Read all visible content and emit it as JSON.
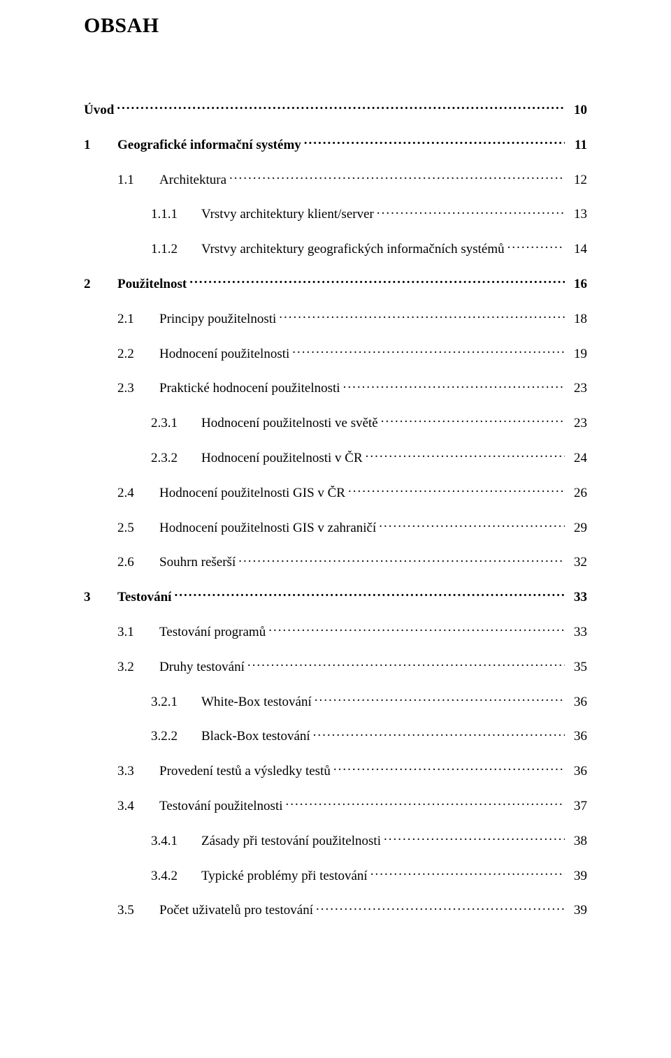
{
  "title": "OBSAH",
  "font_family": "Times New Roman",
  "colors": {
    "text": "#000000",
    "background": "#ffffff"
  },
  "font_sizes": {
    "title": 30,
    "entry": 19
  },
  "entries": [
    {
      "level": 0,
      "bold": true,
      "num": "",
      "label": "Úvod",
      "page": "10"
    },
    {
      "level": 1,
      "bold": true,
      "num": "1",
      "label": "Geografické informační systémy",
      "page": "11"
    },
    {
      "level": 2,
      "bold": false,
      "num": "1.1",
      "label": "Architektura",
      "page": "12"
    },
    {
      "level": 3,
      "bold": false,
      "num": "1.1.1",
      "label": "Vrstvy architektury klient/server",
      "page": "13"
    },
    {
      "level": 3,
      "bold": false,
      "num": "1.1.2",
      "label": "Vrstvy architektury geografických informačních systémů",
      "page": "14"
    },
    {
      "level": 1,
      "bold": true,
      "num": "2",
      "label": "Použitelnost",
      "page": "16"
    },
    {
      "level": 2,
      "bold": false,
      "num": "2.1",
      "label": "Principy použitelnosti",
      "page": "18"
    },
    {
      "level": 2,
      "bold": false,
      "num": "2.2",
      "label": "Hodnocení použitelnosti",
      "page": "19"
    },
    {
      "level": 2,
      "bold": false,
      "num": "2.3",
      "label": "Praktické hodnocení použitelnosti",
      "page": "23"
    },
    {
      "level": 3,
      "bold": false,
      "num": "2.3.1",
      "label": "Hodnocení použitelnosti ve světě",
      "page": "23"
    },
    {
      "level": 3,
      "bold": false,
      "num": "2.3.2",
      "label": "Hodnocení použitelnosti v ČR",
      "page": "24"
    },
    {
      "level": 2,
      "bold": false,
      "num": "2.4",
      "label": "Hodnocení použitelnosti GIS v ČR",
      "page": "26"
    },
    {
      "level": 2,
      "bold": false,
      "num": "2.5",
      "label": "Hodnocení použitelnosti GIS v zahraničí",
      "page": "29"
    },
    {
      "level": 2,
      "bold": false,
      "num": "2.6",
      "label": "Souhrn rešerší",
      "page": "32"
    },
    {
      "level": 1,
      "bold": true,
      "num": "3",
      "label": "Testování",
      "page": "33"
    },
    {
      "level": 2,
      "bold": false,
      "num": "3.1",
      "label": "Testování programů",
      "page": "33"
    },
    {
      "level": 2,
      "bold": false,
      "num": "3.2",
      "label": "Druhy testování",
      "page": "35"
    },
    {
      "level": 3,
      "bold": false,
      "num": "3.2.1",
      "label": "White-Box testování",
      "page": "36"
    },
    {
      "level": 3,
      "bold": false,
      "num": "3.2.2",
      "label": "Black-Box testování",
      "page": "36"
    },
    {
      "level": 2,
      "bold": false,
      "num": "3.3",
      "label": "Provedení testů a výsledky testů",
      "page": "36"
    },
    {
      "level": 2,
      "bold": false,
      "num": "3.4",
      "label": "Testování použitelnosti",
      "page": "37"
    },
    {
      "level": 3,
      "bold": false,
      "num": "3.4.1",
      "label": "Zásady při testování použitelnosti",
      "page": "38"
    },
    {
      "level": 3,
      "bold": false,
      "num": "3.4.2",
      "label": "Typické problémy při testování",
      "page": "39"
    },
    {
      "level": 2,
      "bold": false,
      "num": "3.5",
      "label": "Počet uživatelů pro testování",
      "page": "39"
    }
  ]
}
